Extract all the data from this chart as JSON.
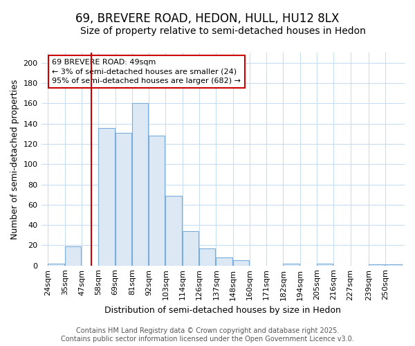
{
  "title1": "69, BREVERE ROAD, HEDON, HULL, HU12 8LX",
  "title2": "Size of property relative to semi-detached houses in Hedon",
  "xlabel": "Distribution of semi-detached houses by size in Hedon",
  "ylabel": "Number of semi-detached properties",
  "footer1": "Contains HM Land Registry data © Crown copyright and database right 2025.",
  "footer2": "Contains public sector information licensed under the Open Government Licence v3.0.",
  "annotation_title": "69 BREVERE ROAD: 49sqm",
  "annotation_line1": "← 3% of semi-detached houses are smaller (24)",
  "annotation_line2": "95% of semi-detached houses are larger (682) →",
  "bar_labels": [
    "24sqm",
    "35sqm",
    "47sqm",
    "58sqm",
    "69sqm",
    "81sqm",
    "92sqm",
    "103sqm",
    "114sqm",
    "126sqm",
    "137sqm",
    "148sqm",
    "160sqm",
    "171sqm",
    "182sqm",
    "194sqm",
    "205sqm",
    "216sqm",
    "227sqm",
    "239sqm",
    "250sqm"
  ],
  "bar_values": [
    2,
    19,
    0,
    136,
    131,
    160,
    128,
    69,
    34,
    17,
    8,
    5,
    0,
    0,
    2,
    0,
    2,
    0,
    0,
    1,
    1
  ],
  "bar_left_edges": [
    18.5,
    29.5,
    40.5,
    51.5,
    62.5,
    73.5,
    84.5,
    95.5,
    106.5,
    117.5,
    128.5,
    139.5,
    150.5,
    161.5,
    172.5,
    183.5,
    194.5,
    205.5,
    216.5,
    228.5,
    239.5
  ],
  "bar_width": 10.5,
  "red_line_x": 47,
  "ylim": [
    0,
    210
  ],
  "yticks": [
    0,
    20,
    40,
    60,
    80,
    100,
    120,
    140,
    160,
    180,
    200
  ],
  "xlim_left": 14,
  "xlim_right": 252,
  "bar_fill_color": "#dce9f5",
  "bar_edge_color": "#7aadda",
  "red_line_color": "#cc0000",
  "background_color": "#ffffff",
  "grid_color": "#c8ddf0",
  "title1_fontsize": 12,
  "title2_fontsize": 10,
  "axis_label_fontsize": 9,
  "tick_fontsize": 8,
  "annotation_fontsize": 8,
  "footer_fontsize": 7
}
